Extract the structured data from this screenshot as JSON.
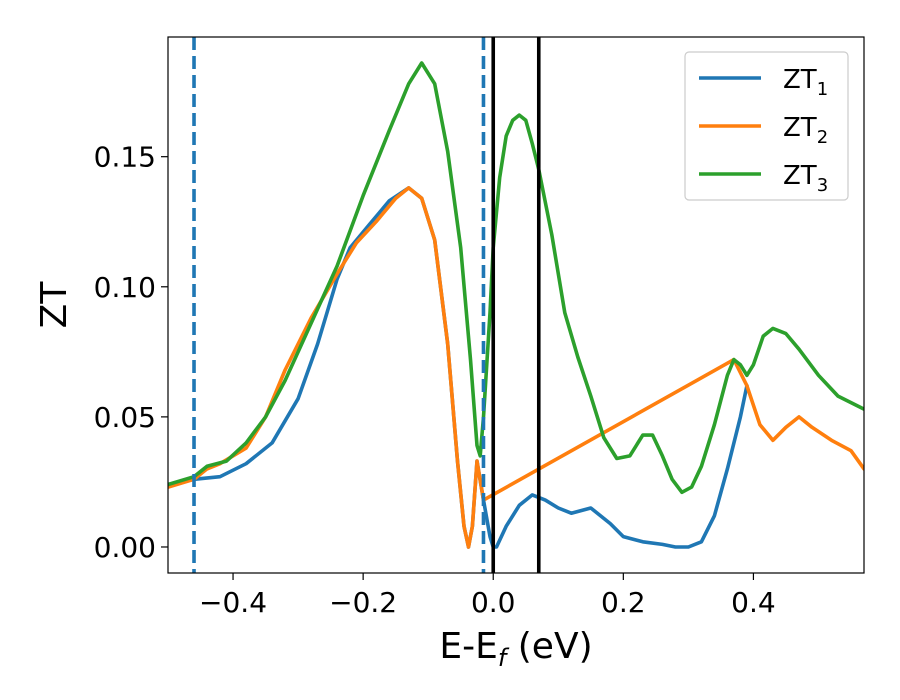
{
  "chart_data": {
    "type": "line",
    "xlabel": "E-E",
    "xlabel_sub": "f",
    "xlabel_unit": " (eV)",
    "ylabel": "ZT",
    "xlim": [
      -0.5,
      0.57
    ],
    "ylim": [
      -0.01,
      0.196
    ],
    "x_ticks": [
      -0.4,
      -0.2,
      0.0,
      0.2,
      0.4
    ],
    "x_tick_labels": [
      "−0.4",
      "−0.2",
      "0.0",
      "0.2",
      "0.4"
    ],
    "y_ticks": [
      0.0,
      0.05,
      0.1,
      0.15
    ],
    "y_tick_labels": [
      "0.00",
      "0.05",
      "0.10",
      "0.15"
    ],
    "grid": false,
    "legend_position": "top-right",
    "vertical_lines": [
      {
        "x": -0.46,
        "style": "dashed",
        "color": "#1f77b4"
      },
      {
        "x": -0.015,
        "style": "dashed",
        "color": "#1f77b4"
      },
      {
        "x": 0.0,
        "style": "solid",
        "color": "#000000"
      },
      {
        "x": 0.07,
        "style": "solid",
        "color": "#000000"
      }
    ],
    "series": [
      {
        "name": "ZT",
        "sub": "1",
        "color": "#1f77b4",
        "points": [
          [
            -0.5,
            0.024
          ],
          [
            -0.46,
            0.026
          ],
          [
            -0.42,
            0.027
          ],
          [
            -0.38,
            0.032
          ],
          [
            -0.34,
            0.04
          ],
          [
            -0.3,
            0.057
          ],
          [
            -0.27,
            0.078
          ],
          [
            -0.24,
            0.103
          ],
          [
            -0.22,
            0.115
          ],
          [
            -0.19,
            0.124
          ],
          [
            -0.16,
            0.133
          ],
          [
            -0.13,
            0.138
          ],
          [
            -0.11,
            0.134
          ],
          [
            -0.09,
            0.118
          ],
          [
            -0.07,
            0.078
          ],
          [
            -0.055,
            0.033
          ],
          [
            -0.045,
            0.008
          ],
          [
            -0.038,
            0.0
          ],
          [
            -0.032,
            0.008
          ],
          [
            -0.025,
            0.033
          ],
          [
            -0.015,
            0.018
          ],
          [
            -0.005,
            0.004
          ],
          [
            0.0,
            0.0
          ],
          [
            0.005,
            0.0
          ],
          [
            0.02,
            0.008
          ],
          [
            0.04,
            0.016
          ],
          [
            0.06,
            0.02
          ],
          [
            0.08,
            0.018
          ],
          [
            0.1,
            0.015
          ],
          [
            0.12,
            0.013
          ],
          [
            0.15,
            0.015
          ],
          [
            0.18,
            0.009
          ],
          [
            0.2,
            0.004
          ],
          [
            0.23,
            0.002
          ],
          [
            0.26,
            0.001
          ],
          [
            0.28,
            0.0
          ],
          [
            0.3,
            0.0
          ],
          [
            0.32,
            0.002
          ],
          [
            0.34,
            0.012
          ],
          [
            0.36,
            0.03
          ],
          [
            0.38,
            0.05
          ],
          [
            0.39,
            0.062
          ]
        ]
      },
      {
        "name": "ZT",
        "sub": "2",
        "color": "#ff7f0e",
        "points": [
          [
            -0.5,
            0.023
          ],
          [
            -0.46,
            0.026
          ],
          [
            -0.44,
            0.03
          ],
          [
            -0.42,
            0.032
          ],
          [
            -0.38,
            0.038
          ],
          [
            -0.35,
            0.05
          ],
          [
            -0.32,
            0.068
          ],
          [
            -0.28,
            0.088
          ],
          [
            -0.24,
            0.105
          ],
          [
            -0.21,
            0.117
          ],
          [
            -0.18,
            0.125
          ],
          [
            -0.15,
            0.134
          ],
          [
            -0.13,
            0.138
          ],
          [
            -0.11,
            0.134
          ],
          [
            -0.09,
            0.118
          ],
          [
            -0.07,
            0.078
          ],
          [
            -0.055,
            0.033
          ],
          [
            -0.045,
            0.008
          ],
          [
            -0.038,
            0.0
          ],
          [
            -0.032,
            0.008
          ],
          [
            -0.025,
            0.033
          ],
          [
            -0.015,
            0.018
          ],
          [
            0.37,
            0.072
          ],
          [
            0.39,
            0.062
          ],
          [
            0.41,
            0.047
          ],
          [
            0.43,
            0.041
          ],
          [
            0.45,
            0.046
          ],
          [
            0.47,
            0.05
          ],
          [
            0.49,
            0.046
          ],
          [
            0.52,
            0.041
          ],
          [
            0.55,
            0.037
          ],
          [
            0.57,
            0.03
          ]
        ]
      },
      {
        "name": "ZT",
        "sub": "3",
        "color": "#2ca02c",
        "points": [
          [
            -0.5,
            0.024
          ],
          [
            -0.46,
            0.027
          ],
          [
            -0.44,
            0.031
          ],
          [
            -0.41,
            0.033
          ],
          [
            -0.38,
            0.04
          ],
          [
            -0.35,
            0.05
          ],
          [
            -0.32,
            0.064
          ],
          [
            -0.28,
            0.086
          ],
          [
            -0.24,
            0.108
          ],
          [
            -0.2,
            0.135
          ],
          [
            -0.16,
            0.16
          ],
          [
            -0.13,
            0.178
          ],
          [
            -0.11,
            0.186
          ],
          [
            -0.09,
            0.178
          ],
          [
            -0.07,
            0.152
          ],
          [
            -0.05,
            0.115
          ],
          [
            -0.035,
            0.072
          ],
          [
            -0.025,
            0.039
          ],
          [
            -0.02,
            0.035
          ],
          [
            -0.015,
            0.05
          ],
          [
            -0.005,
            0.09
          ],
          [
            0.0,
            0.115
          ],
          [
            0.01,
            0.142
          ],
          [
            0.02,
            0.158
          ],
          [
            0.03,
            0.164
          ],
          [
            0.04,
            0.166
          ],
          [
            0.05,
            0.164
          ],
          [
            0.06,
            0.155
          ],
          [
            0.07,
            0.145
          ],
          [
            0.09,
            0.12
          ],
          [
            0.11,
            0.09
          ],
          [
            0.13,
            0.073
          ],
          [
            0.15,
            0.058
          ],
          [
            0.17,
            0.042
          ],
          [
            0.19,
            0.034
          ],
          [
            0.21,
            0.035
          ],
          [
            0.23,
            0.043
          ],
          [
            0.245,
            0.043
          ],
          [
            0.26,
            0.035
          ],
          [
            0.275,
            0.026
          ],
          [
            0.29,
            0.021
          ],
          [
            0.305,
            0.023
          ],
          [
            0.32,
            0.031
          ],
          [
            0.34,
            0.047
          ],
          [
            0.36,
            0.066
          ],
          [
            0.37,
            0.072
          ],
          [
            0.38,
            0.07
          ],
          [
            0.39,
            0.066
          ],
          [
            0.4,
            0.07
          ],
          [
            0.415,
            0.081
          ],
          [
            0.43,
            0.084
          ],
          [
            0.45,
            0.082
          ],
          [
            0.47,
            0.076
          ],
          [
            0.5,
            0.066
          ],
          [
            0.53,
            0.058
          ],
          [
            0.57,
            0.053
          ]
        ]
      }
    ]
  }
}
